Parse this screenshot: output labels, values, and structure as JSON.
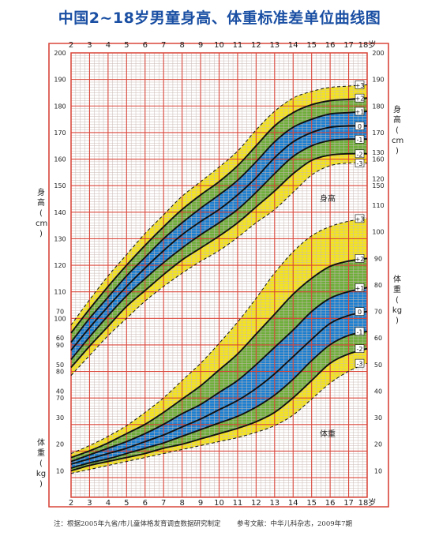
{
  "title": "中国2~18岁男童身高、体重标准差单位曲线图",
  "note_left": "注：根据2005年九省/市儿童体格发育调查数据研究制定",
  "note_right": "参考文献：中华儿科杂志，2009年7期",
  "colors": {
    "grid_major": "#d9463a",
    "grid_minor": "#c9b9b4",
    "band_outer": "#f5e51c",
    "band_mid": "#6eaf3a",
    "band_inner": "#1b7fd1",
    "curve": "#111111",
    "title": "#1a4fa3"
  },
  "chart_data": {
    "type": "line",
    "x_label_end": "18岁",
    "x_ticks": [
      "2",
      "3",
      "4",
      "5",
      "6",
      "7",
      "8",
      "9",
      "10",
      "11",
      "12",
      "13",
      "14",
      "15",
      "16",
      "17"
    ],
    "x_range": [
      2,
      18
    ],
    "ages": [
      2,
      3,
      4,
      5,
      6,
      7,
      8,
      9,
      10,
      11,
      12,
      13,
      14,
      15,
      16,
      17,
      18
    ],
    "height": {
      "axis_label": [
        "身",
        "高",
        "(",
        "cm",
        ")"
      ],
      "axis_label_right": [
        "身",
        "高",
        "(",
        "cm",
        ")"
      ],
      "curve_label": "身高",
      "y_range": [
        67,
        200
      ],
      "left_ticks": [
        70,
        80,
        90,
        100,
        110,
        120,
        130,
        140,
        150,
        160,
        170,
        180,
        190,
        200
      ],
      "right_ticks": [
        150,
        160,
        170,
        180,
        190,
        200
      ],
      "series": [
        {
          "name": "-3",
          "values": [
            78.5,
            86.0,
            93.5,
            100.0,
            106.5,
            112.0,
            117.0,
            121.5,
            125.5,
            130.5,
            136.0,
            141.0,
            147.5,
            154.0,
            157.5,
            158.5,
            158.5
          ]
        },
        {
          "name": "-2",
          "values": [
            81.5,
            89.5,
            97.0,
            104.5,
            110.5,
            116.5,
            122.0,
            126.5,
            131.0,
            136.0,
            142.0,
            148.0,
            154.5,
            159.5,
            161.5,
            162.0,
            162.0
          ]
        },
        {
          "name": "-1",
          "values": [
            84.5,
            93.0,
            101.0,
            108.5,
            115.0,
            121.0,
            126.5,
            131.5,
            136.0,
            141.0,
            147.5,
            154.5,
            161.0,
            165.0,
            167.0,
            167.5,
            167.5
          ]
        },
        {
          "name": "0",
          "values": [
            88.0,
            96.5,
            104.5,
            112.0,
            119.0,
            125.5,
            131.5,
            136.5,
            141.0,
            146.5,
            153.0,
            160.5,
            166.5,
            170.0,
            172.0,
            172.5,
            172.5
          ]
        },
        {
          "name": "+1",
          "values": [
            91.0,
            100.0,
            108.0,
            116.0,
            123.0,
            130.0,
            136.0,
            141.5,
            146.5,
            152.0,
            159.0,
            166.5,
            172.0,
            175.0,
            177.0,
            177.5,
            178.0
          ]
        },
        {
          "name": "+2",
          "values": [
            94.5,
            103.5,
            112.0,
            120.0,
            127.5,
            134.5,
            141.0,
            146.5,
            151.5,
            157.5,
            165.0,
            172.5,
            177.5,
            180.5,
            182.0,
            182.5,
            183.0
          ]
        },
        {
          "name": "+3",
          "values": [
            97.5,
            107.0,
            116.0,
            124.0,
            132.0,
            139.0,
            146.0,
            151.5,
            157.0,
            163.0,
            171.0,
            178.0,
            183.0,
            185.5,
            187.0,
            187.5,
            188.0
          ]
        }
      ]
    },
    "weight": {
      "axis_label": [
        "体",
        "重",
        "(",
        "kg",
        ")"
      ],
      "axis_label_right": [
        "体",
        "重",
        "(",
        "kg",
        ")"
      ],
      "curve_label": "体重",
      "y_range": [
        0,
        130
      ],
      "left_ticks": [
        10,
        20,
        30,
        40,
        50,
        60,
        70
      ],
      "right_ticks": [
        10,
        20,
        30,
        40,
        50,
        60,
        70,
        80,
        90,
        100,
        110,
        120,
        130
      ],
      "series": [
        {
          "name": "-3",
          "values": [
            9.0,
            10.5,
            12.0,
            13.5,
            15.0,
            16.5,
            18.0,
            19.5,
            21.0,
            22.5,
            24.5,
            27.0,
            31.0,
            37.0,
            43.0,
            47.5,
            50.5
          ]
        },
        {
          "name": "-2",
          "values": [
            10.0,
            12.0,
            13.5,
            15.0,
            16.5,
            18.5,
            20.0,
            22.0,
            24.0,
            26.0,
            28.5,
            32.0,
            37.5,
            44.0,
            50.5,
            54.0,
            56.0
          ]
        },
        {
          "name": "-1",
          "values": [
            11.0,
            13.0,
            14.5,
            16.5,
            18.5,
            20.5,
            23.0,
            25.5,
            28.0,
            30.5,
            34.0,
            38.5,
            44.5,
            51.5,
            57.5,
            61.0,
            62.5
          ]
        },
        {
          "name": "0",
          "values": [
            12.5,
            14.5,
            16.5,
            18.5,
            21.0,
            23.5,
            26.5,
            29.5,
            33.0,
            36.5,
            41.0,
            46.5,
            53.0,
            59.5,
            65.5,
            68.5,
            70.0
          ]
        },
        {
          "name": "+1",
          "values": [
            13.5,
            16.0,
            18.5,
            21.0,
            24.0,
            27.5,
            31.5,
            35.0,
            39.5,
            44.0,
            50.0,
            56.5,
            63.0,
            70.0,
            75.0,
            77.5,
            79.0
          ]
        },
        {
          "name": "+2",
          "values": [
            15.0,
            17.5,
            20.5,
            24.0,
            27.5,
            32.0,
            37.0,
            42.0,
            48.0,
            54.0,
            61.5,
            69.0,
            76.5,
            82.5,
            87.0,
            89.0,
            90.0
          ]
        },
        {
          "name": "+3",
          "values": [
            16.5,
            19.5,
            23.0,
            27.0,
            32.0,
            37.5,
            44.0,
            50.5,
            58.0,
            66.0,
            75.0,
            84.5,
            92.5,
            98.5,
            102.0,
            104.0,
            105.0
          ]
        }
      ]
    }
  }
}
